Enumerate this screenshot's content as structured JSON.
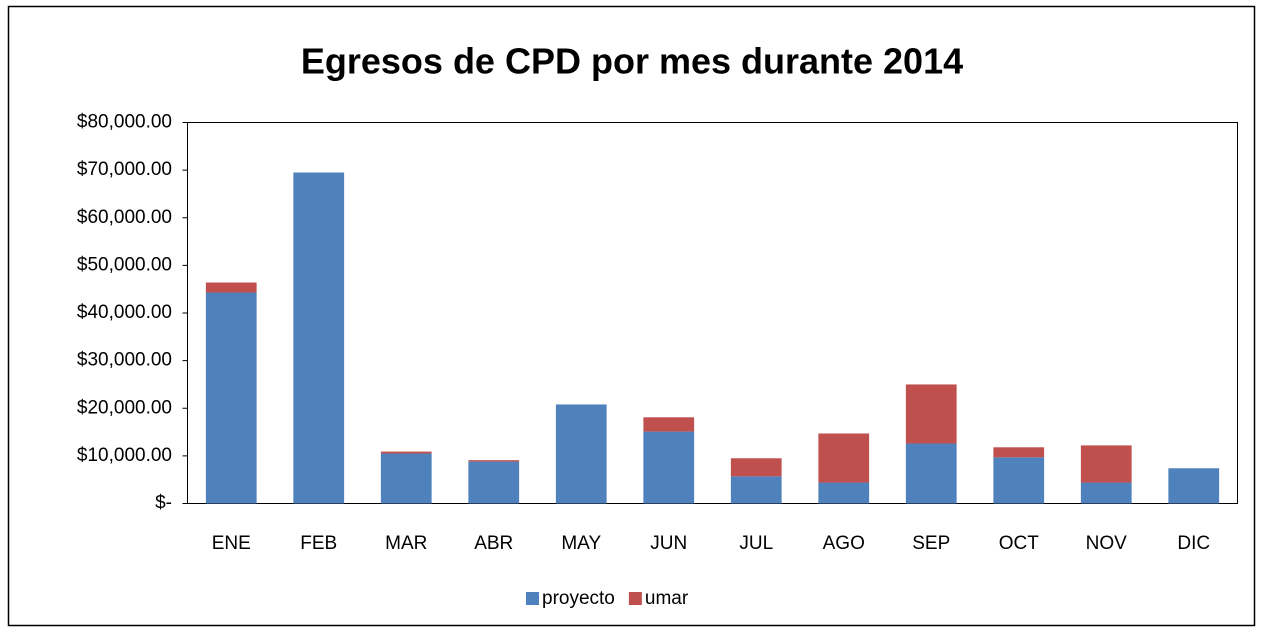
{
  "chart_data": {
    "type": "bar",
    "stacked": true,
    "title": "Egresos de CPD por mes durante 2014",
    "categories": [
      "ENE",
      "FEB",
      "MAR",
      "ABR",
      "MAY",
      "JUN",
      "JUL",
      "AGO",
      "SEP",
      "OCT",
      "NOV",
      "DIC"
    ],
    "series": [
      {
        "name": "proyecto",
        "color": "#4f81bd",
        "values": [
          44300,
          69500,
          10500,
          8800,
          20800,
          15100,
          5700,
          4400,
          12600,
          9700,
          4400,
          7400
        ]
      },
      {
        "name": "umar",
        "color": "#c0504d",
        "values": [
          2100,
          0,
          400,
          300,
          0,
          3000,
          3800,
          10300,
          12400,
          2100,
          7800,
          0
        ]
      }
    ],
    "ylim": [
      0,
      80000
    ],
    "yticks": [
      {
        "value": 0,
        "label": "$-"
      },
      {
        "value": 10000,
        "label": "$10,000.00"
      },
      {
        "value": 20000,
        "label": "$20,000.00"
      },
      {
        "value": 30000,
        "label": "$30,000.00"
      },
      {
        "value": 40000,
        "label": "$40,000.00"
      },
      {
        "value": 50000,
        "label": "$50,000.00"
      },
      {
        "value": 60000,
        "label": "$60,000.00"
      },
      {
        "value": 70000,
        "label": "$70,000.00"
      },
      {
        "value": 80000,
        "label": "$80,000.00"
      }
    ],
    "grid": false,
    "legend": "bottom"
  }
}
